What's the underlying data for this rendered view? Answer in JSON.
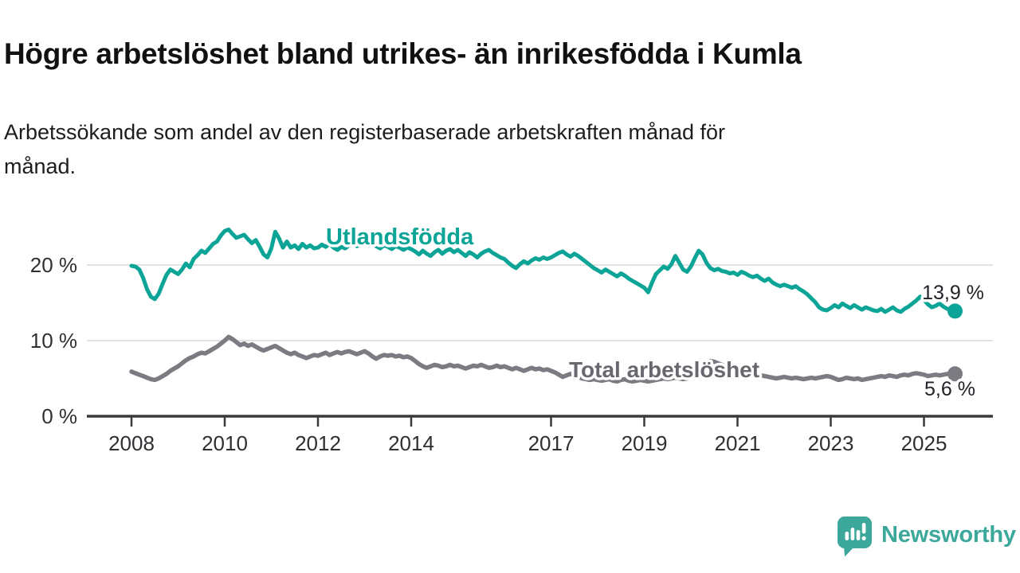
{
  "title": "Högre arbetslöshet bland utrikes- än inrikesfödda i Kumla",
  "subtitle": "Arbetssökande som andel av den registerbaserade arbetskraften månad för månad.",
  "branding": {
    "logo_text": "Newsworthy",
    "logo_color": "#3ba89b"
  },
  "colors": {
    "foreign_born_line": "#0ca496",
    "total_line": "#7b7b81",
    "total_label_text": "#68686f",
    "grid": "#d8d8d8",
    "axis": "#3a3a3e",
    "tick_text": "#2f2f34",
    "value_text": "#222228",
    "background": "#ffffff"
  },
  "chart_data": {
    "type": "line",
    "x_unit": "month",
    "x_start": "2008-01",
    "x_end": "2025-09",
    "x_ticks": [
      "2008",
      "2010",
      "2012",
      "2014",
      "2017",
      "2019",
      "2021",
      "2023",
      "2025"
    ],
    "y_ticks": [
      {
        "value": 0,
        "label": "0 %"
      },
      {
        "value": 10,
        "label": "10 %"
      },
      {
        "value": 20,
        "label": "20 %"
      }
    ],
    "ylim": [
      0,
      26
    ],
    "grid": "horizontal",
    "legend": "inline-labels",
    "series": [
      {
        "name": "Utlandsfödda",
        "color": "#0ca496",
        "end_label": "13,9 %",
        "end_value": 13.9,
        "values": [
          19.9,
          19.8,
          19.4,
          18.3,
          16.8,
          15.8,
          15.5,
          16.2,
          17.5,
          18.7,
          19.4,
          19.1,
          18.8,
          19.4,
          20.2,
          19.7,
          20.8,
          21.3,
          21.9,
          21.6,
          22.2,
          22.8,
          23.1,
          23.9,
          24.5,
          24.7,
          24.1,
          23.6,
          23.8,
          24.0,
          23.4,
          22.9,
          23.3,
          22.4,
          21.4,
          21.0,
          22.2,
          24.4,
          23.5,
          22.3,
          23.1,
          22.3,
          22.6,
          22.1,
          22.8,
          22.3,
          22.6,
          22.2,
          22.3,
          22.7,
          22.4,
          22.8,
          22.3,
          22.0,
          22.4,
          22.2,
          22.6,
          22.9,
          22.5,
          22.7,
          23.0,
          22.6,
          22.8,
          22.5,
          22.2,
          22.6,
          22.4,
          22.1,
          22.5,
          22.3,
          22.0,
          22.3,
          22.1,
          21.8,
          21.4,
          21.9,
          21.5,
          21.2,
          21.7,
          22.0,
          21.5,
          21.9,
          22.1,
          21.7,
          22.0,
          21.6,
          21.2,
          21.7,
          21.4,
          21.0,
          21.5,
          21.8,
          22.0,
          21.6,
          21.3,
          21.0,
          20.8,
          20.3,
          19.9,
          19.6,
          20.1,
          20.5,
          20.2,
          20.6,
          20.9,
          20.7,
          21.0,
          20.8,
          21.0,
          21.3,
          21.6,
          21.8,
          21.4,
          21.1,
          21.5,
          21.2,
          20.8,
          20.4,
          20.0,
          19.6,
          19.3,
          19.0,
          19.4,
          19.1,
          18.8,
          18.5,
          18.9,
          18.6,
          18.2,
          17.9,
          17.6,
          17.3,
          17.0,
          16.4,
          17.7,
          18.8,
          19.3,
          19.8,
          19.5,
          20.1,
          21.2,
          20.3,
          19.4,
          19.1,
          19.8,
          20.9,
          21.9,
          21.4,
          20.3,
          19.6,
          19.3,
          19.5,
          19.2,
          19.1,
          18.9,
          19.0,
          18.7,
          19.1,
          18.9,
          18.6,
          18.4,
          18.6,
          18.2,
          17.9,
          18.2,
          17.7,
          17.4,
          17.2,
          17.4,
          17.2,
          17.0,
          17.2,
          16.8,
          16.5,
          16.1,
          15.6,
          15.1,
          14.4,
          14.1,
          14.0,
          14.3,
          14.7,
          14.4,
          14.9,
          14.6,
          14.3,
          14.7,
          14.4,
          14.1,
          14.4,
          14.2,
          14.0,
          13.9,
          14.2,
          13.8,
          14.1,
          14.4,
          14.0,
          13.8,
          14.2,
          14.5,
          14.9,
          15.3,
          15.8,
          15.4,
          14.8,
          14.4,
          14.6,
          14.9,
          14.5,
          14.2,
          14.0,
          13.9
        ]
      },
      {
        "name": "Total arbetslöshet",
        "color": "#7b7b81",
        "end_label": "5,6 %",
        "end_value": 5.6,
        "values": [
          5.9,
          5.7,
          5.5,
          5.3,
          5.1,
          4.9,
          4.8,
          5.0,
          5.3,
          5.6,
          6.0,
          6.3,
          6.6,
          7.0,
          7.4,
          7.7,
          7.9,
          8.2,
          8.4,
          8.3,
          8.6,
          8.9,
          9.2,
          9.6,
          10.0,
          10.5,
          10.2,
          9.8,
          9.4,
          9.6,
          9.3,
          9.5,
          9.2,
          8.9,
          8.7,
          8.9,
          9.1,
          9.3,
          9.0,
          8.7,
          8.4,
          8.2,
          8.4,
          8.1,
          7.9,
          7.7,
          7.9,
          8.1,
          8.0,
          8.2,
          8.4,
          8.1,
          8.3,
          8.5,
          8.3,
          8.5,
          8.6,
          8.4,
          8.2,
          8.4,
          8.6,
          8.3,
          7.9,
          7.6,
          7.9,
          8.1,
          8.0,
          8.1,
          7.9,
          8.0,
          7.8,
          7.9,
          7.7,
          7.3,
          6.9,
          6.6,
          6.4,
          6.6,
          6.8,
          6.7,
          6.5,
          6.6,
          6.8,
          6.6,
          6.7,
          6.5,
          6.3,
          6.5,
          6.7,
          6.6,
          6.8,
          6.6,
          6.4,
          6.5,
          6.7,
          6.5,
          6.6,
          6.4,
          6.2,
          6.4,
          6.2,
          6.0,
          6.2,
          6.4,
          6.2,
          6.3,
          6.1,
          6.2,
          6.0,
          5.8,
          5.5,
          5.2,
          5.4,
          5.6,
          5.4,
          5.2,
          5.0,
          4.9,
          4.8,
          4.9,
          4.8,
          4.7,
          4.8,
          4.9,
          4.7,
          4.6,
          4.8,
          4.9,
          4.7,
          4.6,
          4.7,
          4.8,
          4.7,
          4.6,
          4.7,
          4.8,
          4.9,
          5.0,
          4.9,
          5.0,
          5.1,
          5.0,
          4.9,
          5.0,
          5.2,
          5.5,
          6.2,
          6.8,
          7.1,
          7.3,
          7.2,
          7.0,
          6.8,
          6.6,
          6.4,
          6.3,
          6.4,
          6.2,
          6.0,
          5.8,
          5.6,
          5.5,
          5.4,
          5.3,
          5.2,
          5.1,
          5.0,
          5.1,
          5.2,
          5.1,
          5.0,
          5.1,
          5.0,
          4.9,
          5.0,
          5.1,
          5.0,
          5.1,
          5.2,
          5.3,
          5.2,
          5.0,
          4.8,
          4.9,
          5.1,
          5.0,
          4.9,
          5.0,
          4.8,
          4.9,
          5.0,
          5.1,
          5.2,
          5.3,
          5.2,
          5.4,
          5.3,
          5.2,
          5.4,
          5.5,
          5.4,
          5.6,
          5.7,
          5.6,
          5.5,
          5.3,
          5.4,
          5.5,
          5.4,
          5.5,
          5.6,
          5.5,
          5.6
        ]
      }
    ]
  }
}
